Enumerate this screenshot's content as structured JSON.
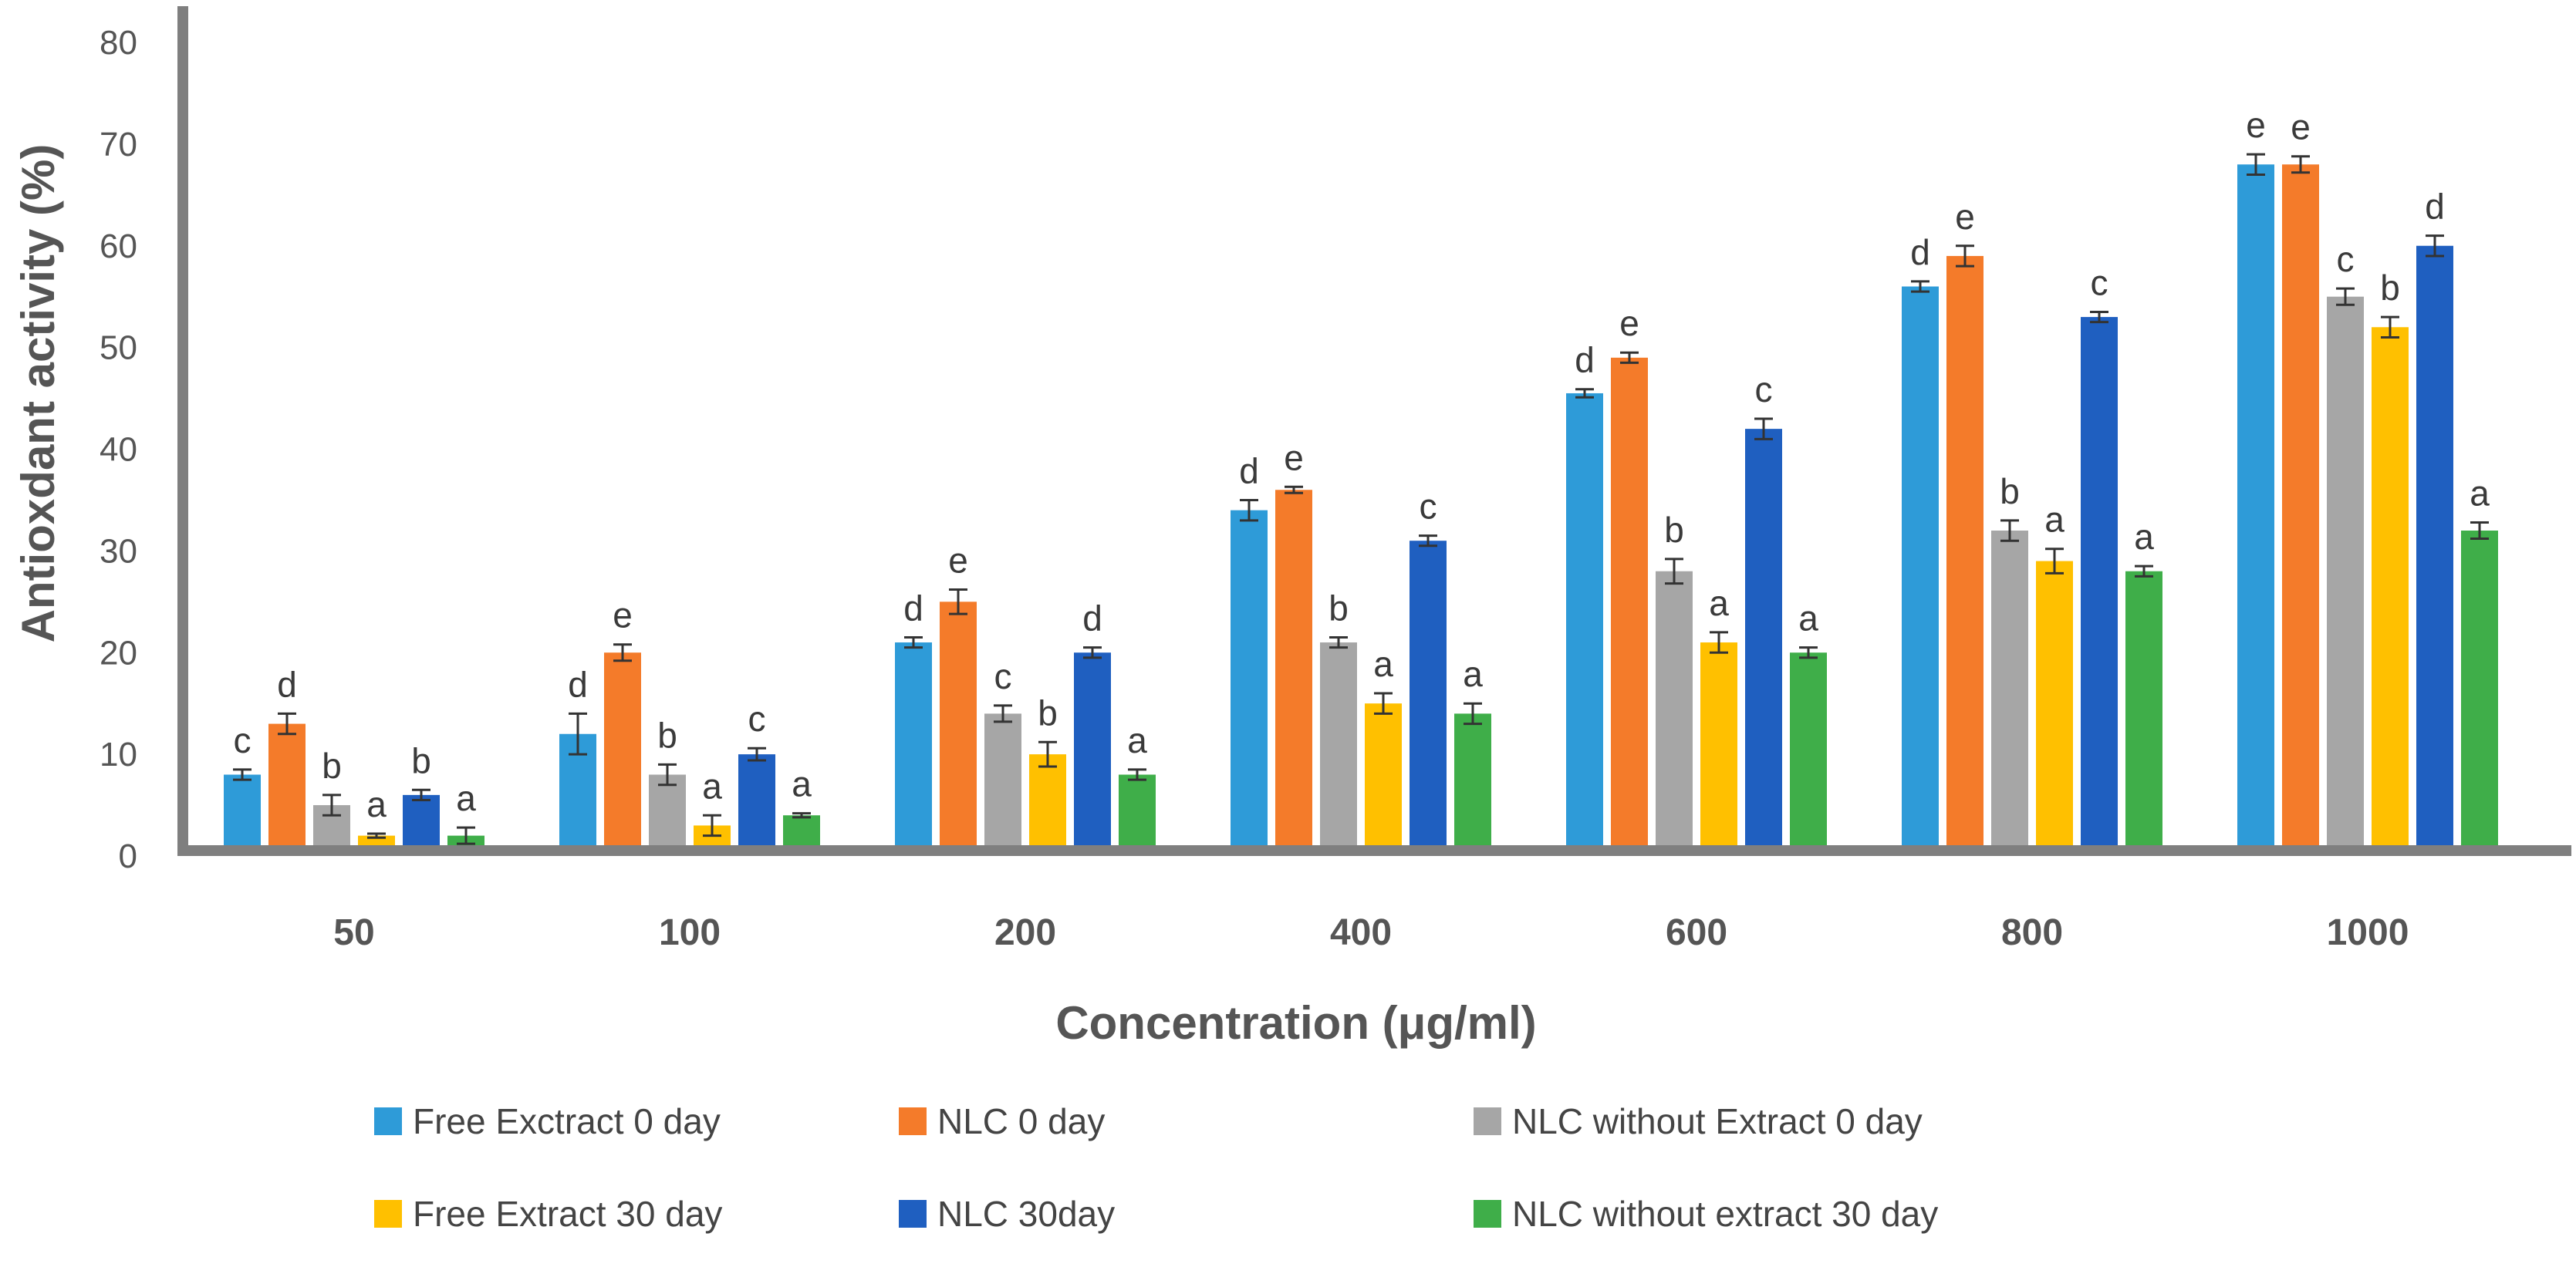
{
  "chart_data": {
    "type": "bar",
    "title": "",
    "xlabel": "Concentration (μg/ml)",
    "ylabel": "Antioxdant activity (%)",
    "ylim": [
      0,
      80
    ],
    "yticks": [
      "0",
      "10",
      "20",
      "30",
      "40",
      "50",
      "60",
      "70",
      "80"
    ],
    "categories": [
      "50",
      "100",
      "200",
      "400",
      "600",
      "800",
      "1000"
    ],
    "legend_position": "bottom",
    "series": [
      {
        "name": "Free Exctract 0 day",
        "color": "#2E9BD8",
        "values": [
          8,
          12,
          21,
          34,
          45.5,
          56,
          68
        ],
        "errors": [
          0.5,
          2,
          0.5,
          1,
          0.4,
          0.5,
          1
        ],
        "letters": [
          "c",
          "d",
          "d",
          "d",
          "d",
          "d",
          "e"
        ]
      },
      {
        "name": "NLC 0 day",
        "color": "#F47B2A",
        "values": [
          13,
          20,
          25,
          36,
          49,
          59,
          68
        ],
        "errors": [
          1,
          0.8,
          1.2,
          0.3,
          0.5,
          1,
          0.8
        ],
        "letters": [
          "d",
          "e",
          "e",
          "e",
          "e",
          "e",
          "e"
        ]
      },
      {
        "name": "NLC without Extract 0 day",
        "color": "#A6A6A6",
        "values": [
          5,
          8,
          14,
          21,
          28,
          32,
          55
        ],
        "errors": [
          1,
          1,
          0.8,
          0.5,
          1.2,
          1,
          0.8
        ],
        "letters": [
          "b",
          "b",
          "c",
          "b",
          "b",
          "b",
          "c"
        ]
      },
      {
        "name": "Free Extract 30 day",
        "color": "#FFC000",
        "values": [
          2,
          3,
          10,
          15,
          21,
          29,
          52
        ],
        "errors": [
          0.2,
          1,
          1.2,
          1,
          1,
          1.2,
          1
        ],
        "letters": [
          "a",
          "a",
          "b",
          "a",
          "a",
          "a",
          "b"
        ]
      },
      {
        "name": "NLC 30day",
        "color": "#1F5FC0",
        "values": [
          6,
          10,
          20,
          31,
          42,
          53,
          60
        ],
        "errors": [
          0.5,
          0.6,
          0.5,
          0.5,
          1,
          0.5,
          1
        ],
        "letters": [
          "b",
          "c",
          "d",
          "c",
          "c",
          "c",
          "d"
        ]
      },
      {
        "name": "NLC without extract  30 day",
        "color": "#3FAE49",
        "values": [
          2,
          4,
          8,
          14,
          20,
          28,
          32
        ],
        "errors": [
          0.8,
          0.2,
          0.5,
          1,
          0.5,
          0.5,
          0.8
        ],
        "letters": [
          "a",
          "a",
          "a",
          "a",
          "a",
          "a",
          "a"
        ]
      }
    ]
  }
}
